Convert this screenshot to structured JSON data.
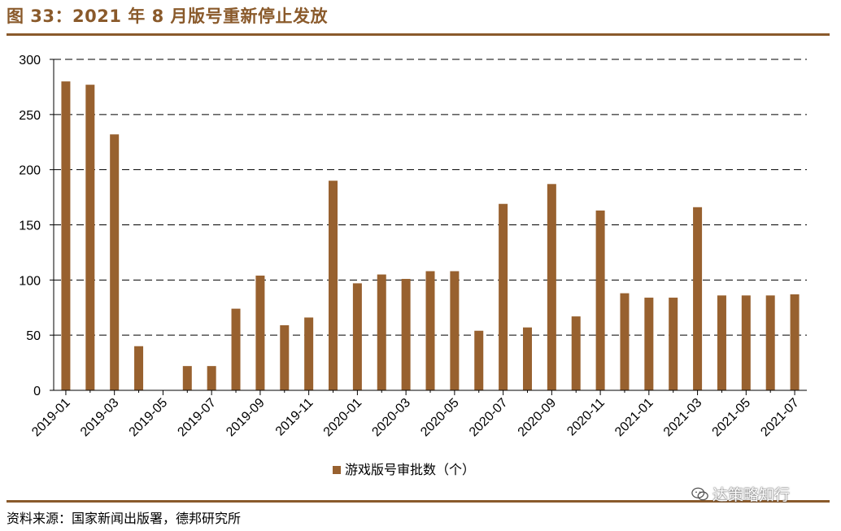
{
  "figure_title": "图 33：2021 年 8 月版号重新停止发放",
  "source_note": "资料来源：国家新闻出版署，德邦研究所",
  "watermark_text": "达策略知行",
  "colors": {
    "bar": "#98612f",
    "accent": "#8a5a2b"
  },
  "chart_data": {
    "type": "bar",
    "title": "",
    "xlabel": "",
    "ylabel": "",
    "ylim": [
      0,
      300
    ],
    "yticks": [
      0,
      50,
      100,
      150,
      200,
      250,
      300
    ],
    "grid": "horizontal-dashed",
    "legend_position": "bottom-center",
    "categories": [
      "2019-01",
      "2019-02",
      "2019-03",
      "2019-04",
      "2019-05",
      "2019-06",
      "2019-07",
      "2019-08",
      "2019-09",
      "2019-10",
      "2019-11",
      "2019-12",
      "2020-01",
      "2020-02",
      "2020-03",
      "2020-04",
      "2020-05",
      "2020-06",
      "2020-07",
      "2020-08",
      "2020-09",
      "2020-10",
      "2020-11",
      "2020-12",
      "2021-01",
      "2021-02",
      "2021-03",
      "2021-04",
      "2021-05",
      "2021-06",
      "2021-07"
    ],
    "tick_labels_shown": [
      "2019-01",
      "2019-03",
      "2019-05",
      "2019-07",
      "2019-09",
      "2019-11",
      "2020-01",
      "2020-03",
      "2020-05",
      "2020-07",
      "2020-09",
      "2020-11",
      "2021-01",
      "2021-03",
      "2021-05",
      "2021-07"
    ],
    "series": [
      {
        "name": "游戏版号审批数（个）",
        "values": [
          280,
          277,
          232,
          40,
          0,
          22,
          22,
          74,
          104,
          59,
          66,
          190,
          97,
          105,
          101,
          108,
          108,
          54,
          169,
          57,
          187,
          67,
          163,
          88,
          84,
          84,
          166,
          86,
          86,
          86,
          87
        ]
      }
    ]
  }
}
